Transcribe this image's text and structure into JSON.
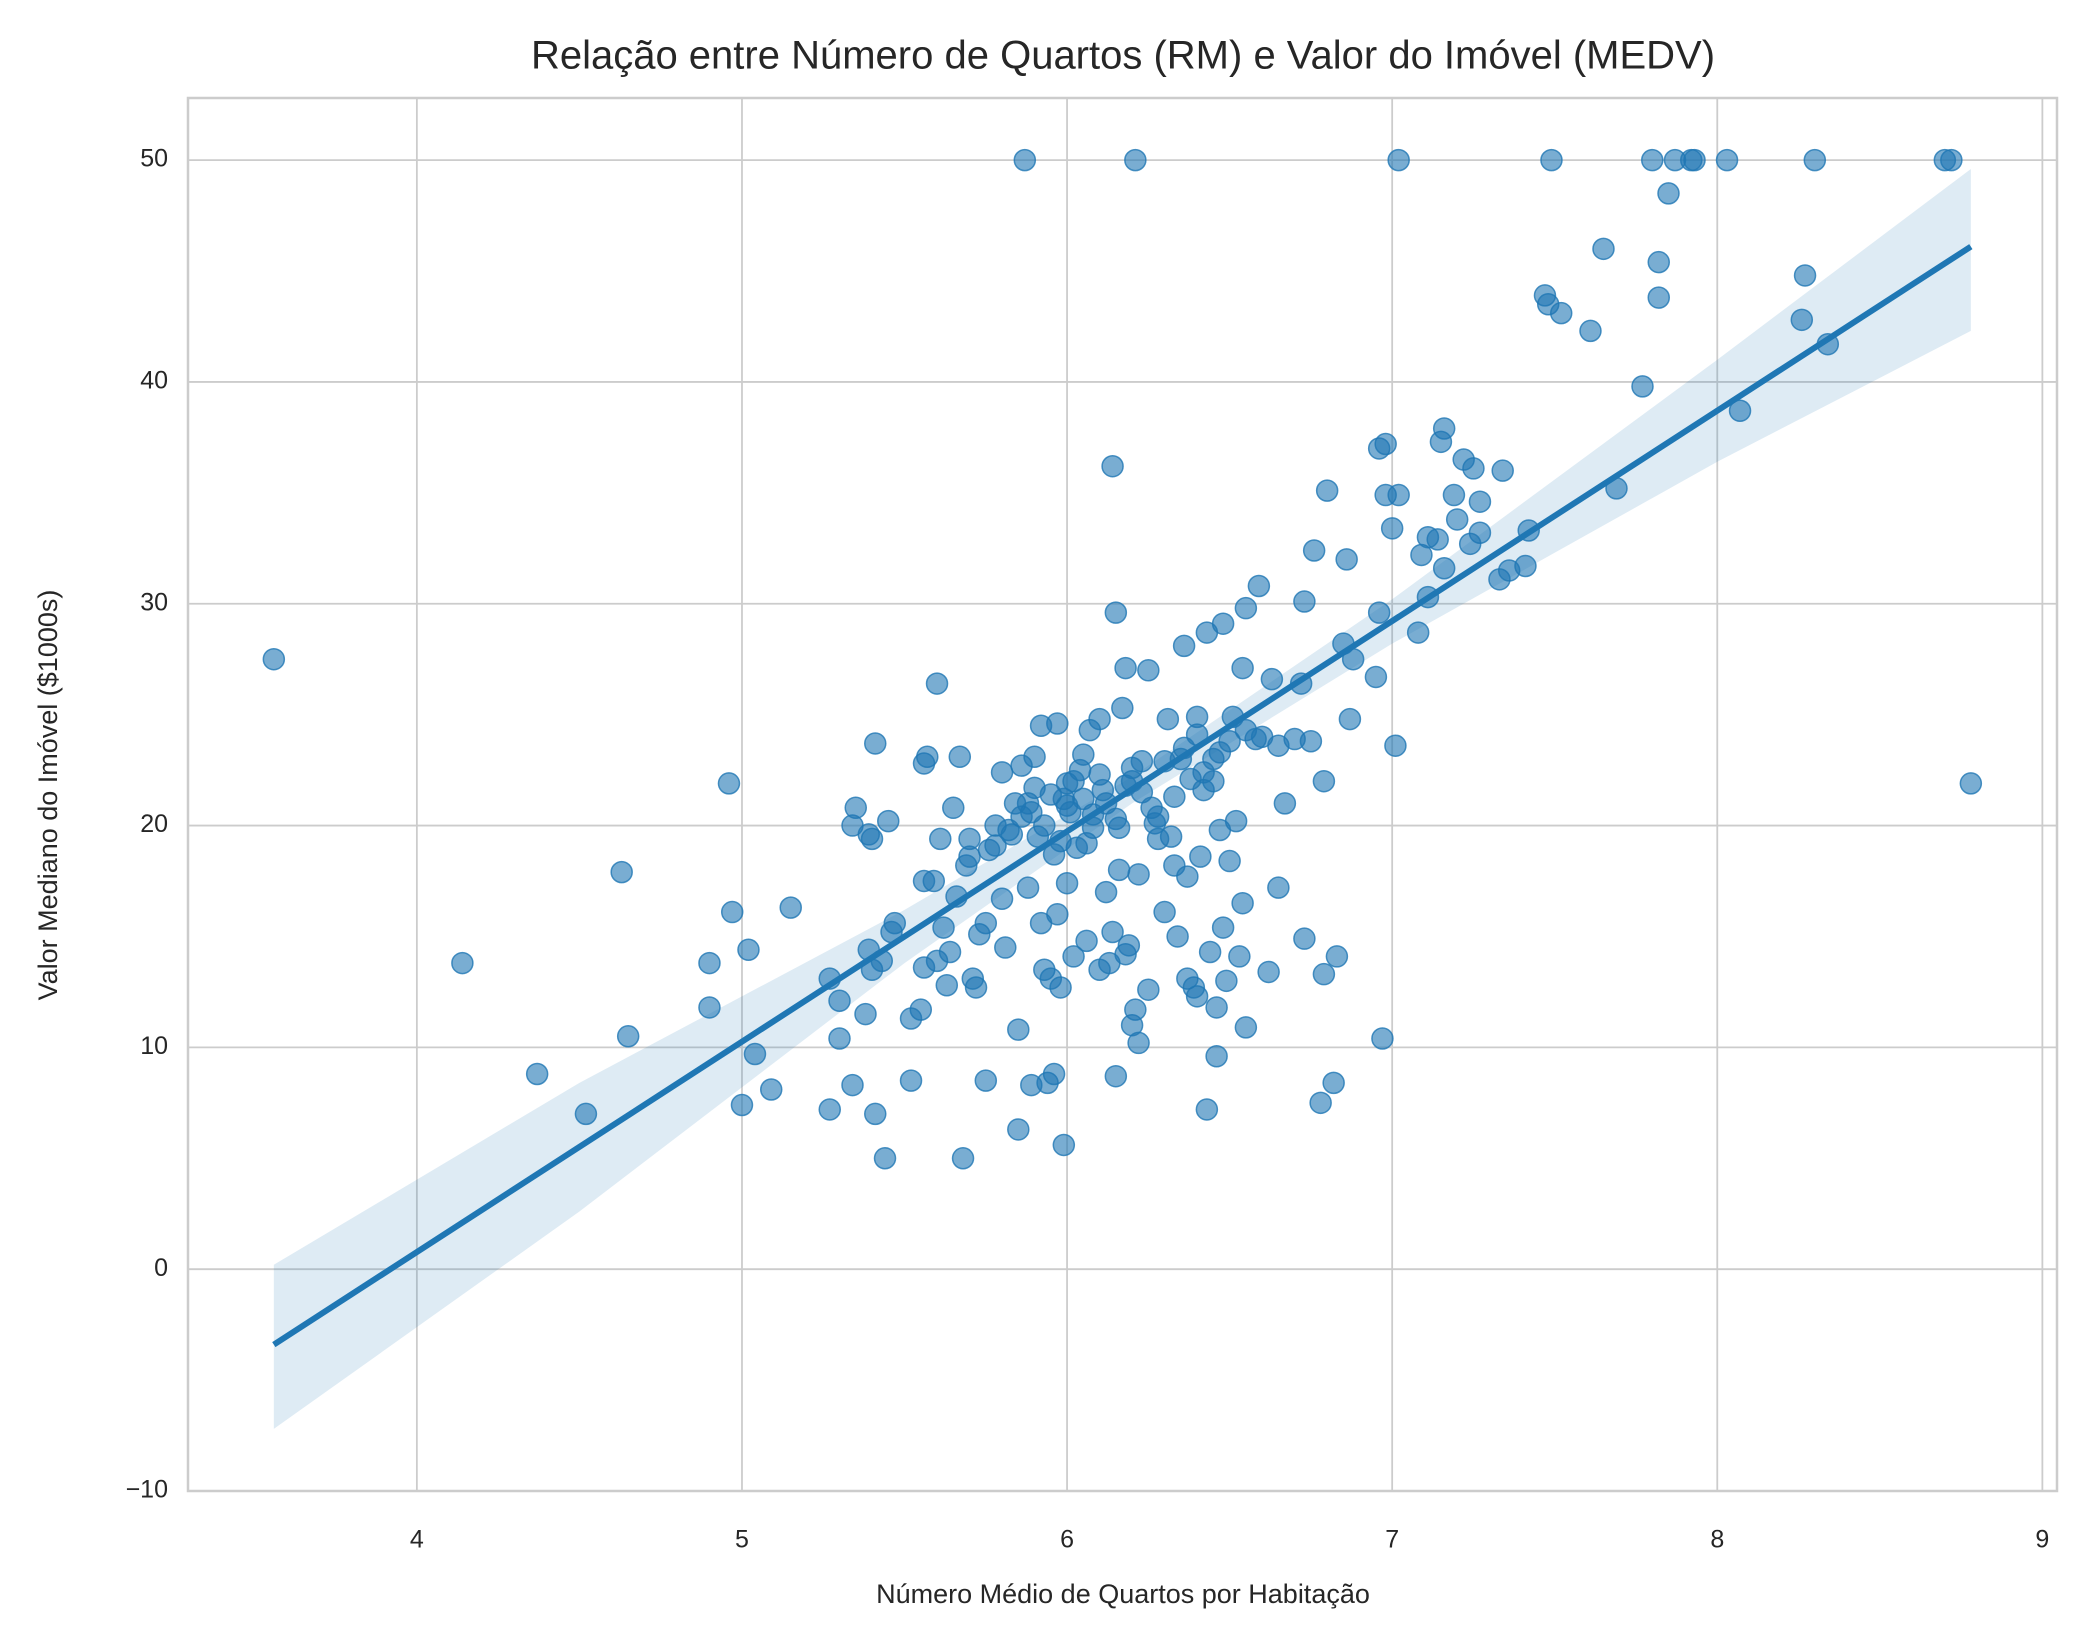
{
  "chart_data": {
    "type": "scatter",
    "title": "Relação entre Número de Quartos (RM) e Valor do Imóvel (MEDV)",
    "xlabel": "Número Médio de Quartos por Habitação",
    "ylabel": "Valor Mediano do Imóvel ($1000s)",
    "xlim": [
      3.296,
      9.045
    ],
    "ylim": [
      -10.0,
      52.8
    ],
    "xticks": [
      4,
      5,
      6,
      7,
      8,
      9
    ],
    "yticks": [
      {
        "value": -10,
        "label": "−10"
      },
      0,
      10,
      20,
      30,
      40,
      50
    ],
    "grid": true,
    "color": "#1f77b4",
    "x": [
      3.56,
      4.14,
      4.37,
      4.52,
      4.63,
      4.65,
      4.9,
      4.9,
      4.96,
      4.97,
      5.0,
      5.02,
      5.04,
      5.09,
      5.15,
      5.27,
      5.27,
      5.3,
      5.3,
      5.34,
      5.35,
      5.34,
      5.39,
      5.39,
      5.38,
      5.4,
      5.4,
      5.41,
      5.41,
      5.43,
      5.44,
      5.45,
      5.46,
      5.47,
      5.52,
      5.52,
      5.55,
      5.56,
      5.56,
      5.56,
      5.57,
      5.59,
      5.6,
      5.6,
      5.61,
      5.62,
      5.63,
      5.64,
      5.65,
      5.66,
      5.67,
      5.68,
      5.69,
      5.7,
      5.71,
      5.72,
      5.73,
      5.75,
      5.75,
      5.76,
      5.78,
      5.8,
      5.8,
      5.81,
      5.83,
      5.85,
      5.85,
      5.86,
      5.87,
      5.88,
      5.88,
      5.89,
      5.9,
      5.91,
      5.92,
      5.92,
      5.93,
      5.94,
      5.95,
      5.96,
      5.97,
      5.97,
      5.98,
      5.99,
      5.99,
      6.0,
      6.01,
      6.02,
      6.03,
      6.04,
      6.05,
      6.06,
      6.07,
      6.08,
      6.1,
      6.1,
      6.11,
      6.12,
      6.13,
      6.14,
      6.14,
      6.15,
      6.15,
      6.16,
      6.17,
      6.18,
      6.18,
      6.19,
      6.2,
      6.21,
      6.21,
      6.22,
      6.22,
      6.23,
      6.25,
      6.25,
      6.27,
      6.28,
      6.3,
      6.31,
      6.32,
      6.33,
      6.34,
      6.36,
      6.37,
      6.37,
      6.39,
      6.4,
      6.4,
      6.41,
      6.42,
      6.43,
      6.43,
      6.44,
      6.45,
      6.46,
      6.46,
      6.47,
      6.48,
      6.48,
      6.49,
      6.5,
      6.51,
      6.52,
      6.53,
      6.54,
      6.54,
      6.55,
      6.55,
      6.58,
      6.59,
      6.62,
      6.63,
      6.65,
      6.67,
      6.7,
      6.72,
      6.73,
      6.73,
      6.75,
      6.76,
      6.78,
      6.79,
      6.79,
      6.8,
      6.82,
      6.83,
      6.85,
      6.86,
      6.87,
      6.88,
      6.95,
      6.96,
      6.96,
      6.97,
      6.98,
      6.98,
      7.0,
      7.01,
      7.02,
      7.02,
      7.08,
      7.09,
      7.11,
      7.11,
      7.14,
      7.15,
      7.16,
      7.16,
      7.19,
      7.2,
      7.22,
      7.24,
      7.25,
      7.27,
      7.27,
      7.33,
      7.34,
      7.36,
      7.41,
      7.42,
      7.47,
      7.48,
      7.49,
      7.52,
      7.61,
      7.65,
      7.69,
      7.77,
      7.8,
      7.82,
      7.82,
      7.85,
      7.87,
      7.92,
      7.93,
      8.03,
      8.07,
      8.26,
      8.27,
      8.3,
      8.34,
      8.7,
      8.72,
      8.78,
      5.84,
      5.86,
      5.9,
      5.93,
      5.95,
      5.98,
      6.0,
      6.02,
      6.05,
      6.08,
      6.1,
      6.12,
      6.15,
      6.18,
      6.2,
      6.23,
      6.26,
      6.3,
      6.33,
      6.36,
      6.4,
      6.42,
      6.45,
      6.5,
      6.55,
      6.6,
      6.65,
      5.82,
      5.89,
      5.96,
      6.06,
      6.16,
      6.28,
      6.38,
      6.47,
      5.7,
      5.78,
      6.0,
      6.2,
      6.35
    ],
    "values": [
      27.5,
      13.8,
      8.8,
      7.0,
      17.9,
      10.5,
      13.8,
      11.8,
      21.9,
      16.1,
      7.4,
      14.4,
      9.7,
      8.1,
      16.3,
      13.1,
      7.2,
      12.1,
      10.4,
      20.0,
      20.8,
      8.3,
      19.6,
      14.4,
      11.5,
      19.4,
      13.5,
      23.7,
      7.0,
      13.9,
      5.0,
      20.2,
      15.2,
      15.6,
      11.3,
      8.5,
      11.7,
      13.6,
      17.5,
      22.8,
      23.1,
      17.5,
      26.4,
      13.9,
      19.4,
      15.4,
      12.8,
      14.3,
      20.8,
      16.8,
      23.1,
      5.0,
      18.2,
      19.4,
      13.1,
      12.7,
      15.1,
      8.5,
      15.6,
      18.9,
      20.0,
      22.4,
      16.7,
      14.5,
      19.6,
      6.3,
      10.8,
      22.7,
      50.0,
      21.0,
      17.2,
      8.3,
      23.1,
      19.5,
      15.6,
      24.5,
      13.5,
      8.4,
      13.1,
      8.8,
      24.6,
      16.0,
      12.7,
      5.6,
      21.2,
      17.4,
      20.6,
      14.1,
      19.0,
      22.5,
      23.2,
      14.8,
      24.3,
      19.9,
      13.5,
      24.8,
      21.6,
      17.0,
      13.8,
      36.2,
      15.2,
      29.6,
      8.7,
      18.0,
      25.3,
      27.1,
      14.2,
      14.6,
      11.0,
      11.7,
      50.0,
      10.2,
      17.8,
      22.9,
      27.0,
      12.6,
      20.1,
      19.4,
      16.1,
      24.8,
      19.5,
      18.2,
      15.0,
      28.1,
      17.7,
      13.1,
      12.7,
      24.9,
      12.3,
      18.6,
      21.6,
      28.7,
      7.2,
      14.3,
      22.0,
      9.6,
      11.8,
      19.8,
      29.1,
      15.4,
      13.0,
      18.4,
      24.9,
      20.2,
      14.1,
      16.5,
      27.1,
      29.8,
      10.9,
      23.9,
      30.8,
      13.4,
      26.6,
      17.2,
      21.0,
      23.9,
      26.4,
      14.9,
      30.1,
      23.8,
      32.4,
      7.5,
      22.0,
      13.3,
      35.1,
      8.4,
      14.1,
      28.2,
      32.0,
      24.8,
      27.5,
      26.7,
      29.6,
      37.0,
      10.4,
      34.9,
      37.2,
      33.4,
      23.6,
      34.9,
      50.0,
      28.7,
      32.2,
      30.3,
      33.0,
      32.9,
      37.3,
      37.9,
      31.6,
      34.9,
      33.8,
      36.5,
      32.7,
      36.1,
      34.6,
      33.2,
      31.1,
      36.0,
      31.5,
      31.7,
      33.3,
      43.9,
      43.5,
      50.0,
      43.1,
      42.3,
      46.0,
      35.2,
      39.8,
      50.0,
      43.8,
      45.4,
      48.5,
      50.0,
      50.0,
      50.0,
      50.0,
      38.7,
      42.8,
      44.8,
      50.0,
      41.7,
      50.0,
      50.0,
      21.9,
      21.0,
      20.4,
      21.7,
      20.0,
      21.4,
      19.3,
      20.9,
      22.0,
      21.2,
      20.5,
      22.3,
      21.0,
      20.3,
      21.8,
      22.6,
      21.5,
      20.8,
      22.9,
      21.3,
      23.5,
      24.1,
      22.4,
      23.0,
      23.8,
      24.3,
      24.0,
      23.6,
      19.8,
      20.6,
      18.7,
      19.2,
      19.9,
      20.4,
      22.1,
      23.3,
      18.6,
      19.1,
      21.9,
      22.0,
      23.0
    ],
    "regression": {
      "x": [
        3.56,
        8.78
      ],
      "values": [
        -3.4,
        46.1
      ]
    },
    "band": {
      "x": [
        3.56,
        4.5,
        5.5,
        6.2,
        7.0,
        8.0,
        8.78
      ],
      "lower": [
        -7.2,
        2.6,
        13.8,
        21.0,
        28.2,
        36.4,
        42.3
      ],
      "upper": [
        0.2,
        8.4,
        16.2,
        22.2,
        30.2,
        41.0,
        49.6
      ]
    }
  }
}
